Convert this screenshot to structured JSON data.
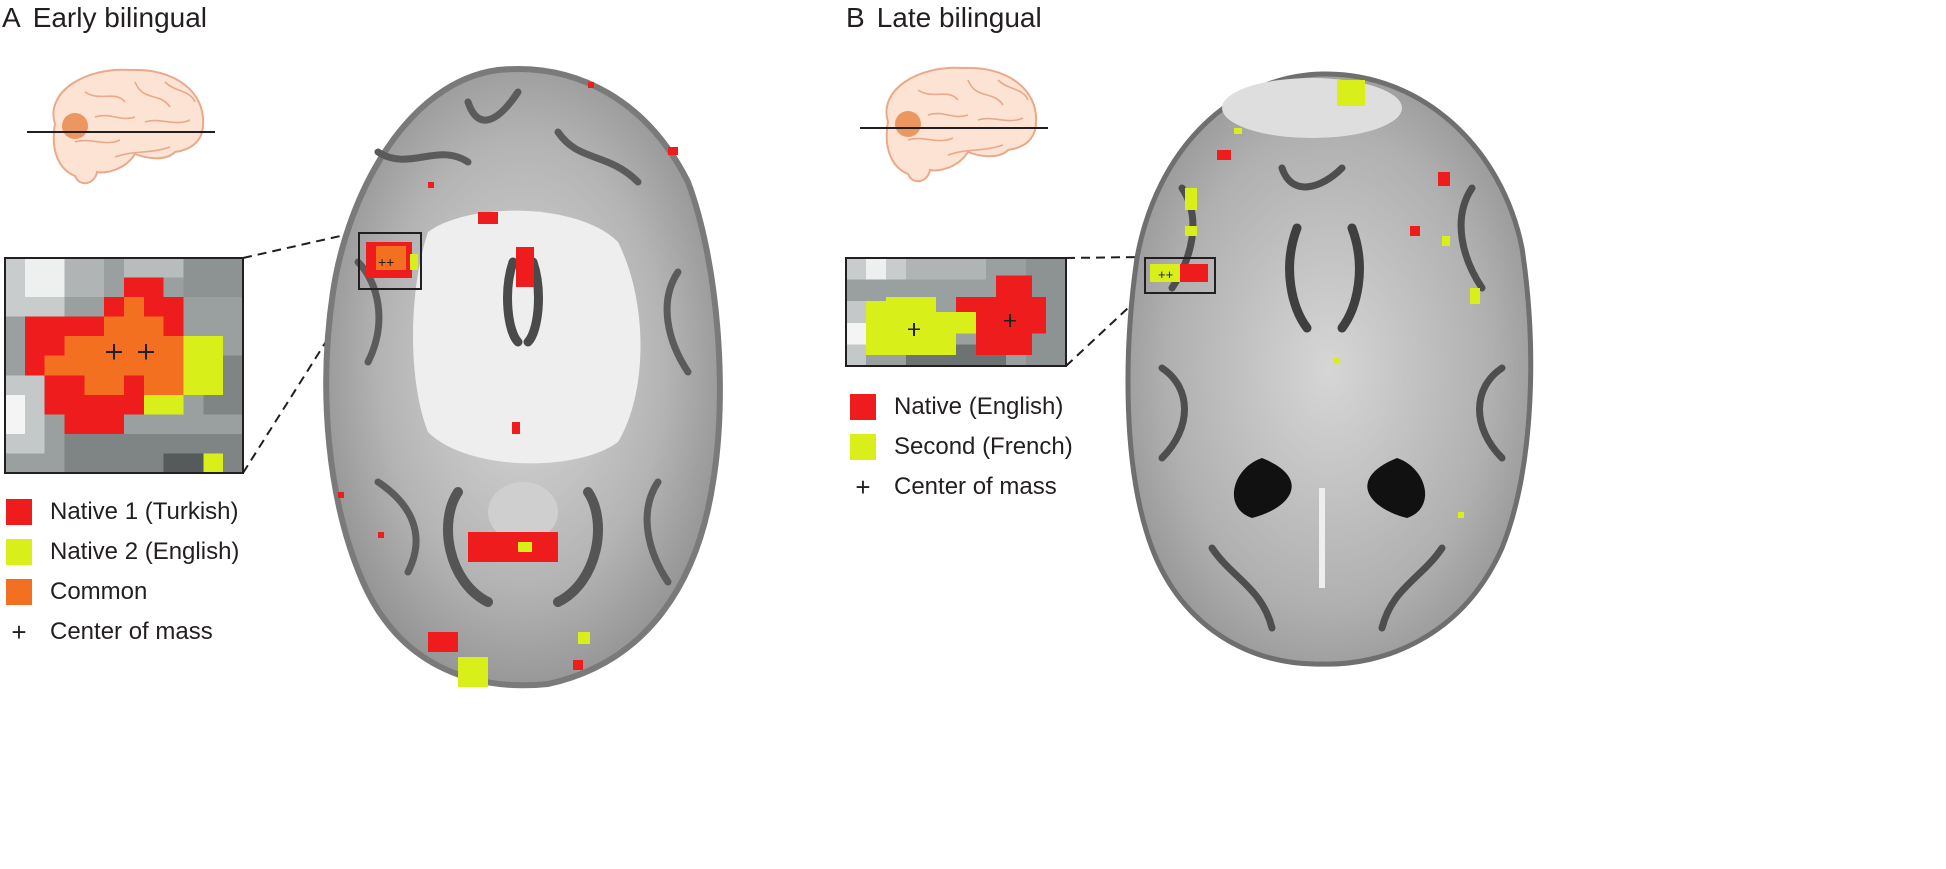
{
  "panel_a": {
    "letter": "A",
    "title": "Early bilingual",
    "legend": [
      {
        "label": "Native 1 (Turkish)",
        "color": "#ee1c1c"
      },
      {
        "label": "Native 2 (English)",
        "color": "#d9ef1a"
      },
      {
        "label": "Common",
        "color": "#f37021"
      }
    ],
    "center_of_mass_symbol": "+",
    "center_of_mass_label": "Center of mass",
    "mini_plus": "++"
  },
  "panel_b": {
    "letter": "B",
    "title": "Late bilingual",
    "legend": [
      {
        "label": "Native (English)",
        "color": "#ee1c1c"
      },
      {
        "label": "Second (French)",
        "color": "#d9ef1a"
      }
    ],
    "center_of_mass_symbol": "+",
    "center_of_mass_label": "Center of mass",
    "mini_plus": "++"
  },
  "colors": {
    "red": "#ee1c1c",
    "yellow": "#d9ef1a",
    "orange": "#f37021",
    "brain_skin": "#fce3d3",
    "brain_outline": "#e9a98a",
    "broca_region": "#e98a4a"
  },
  "icons": [
    "brain-lateral-icon-a",
    "brain-lateral-icon-b"
  ]
}
